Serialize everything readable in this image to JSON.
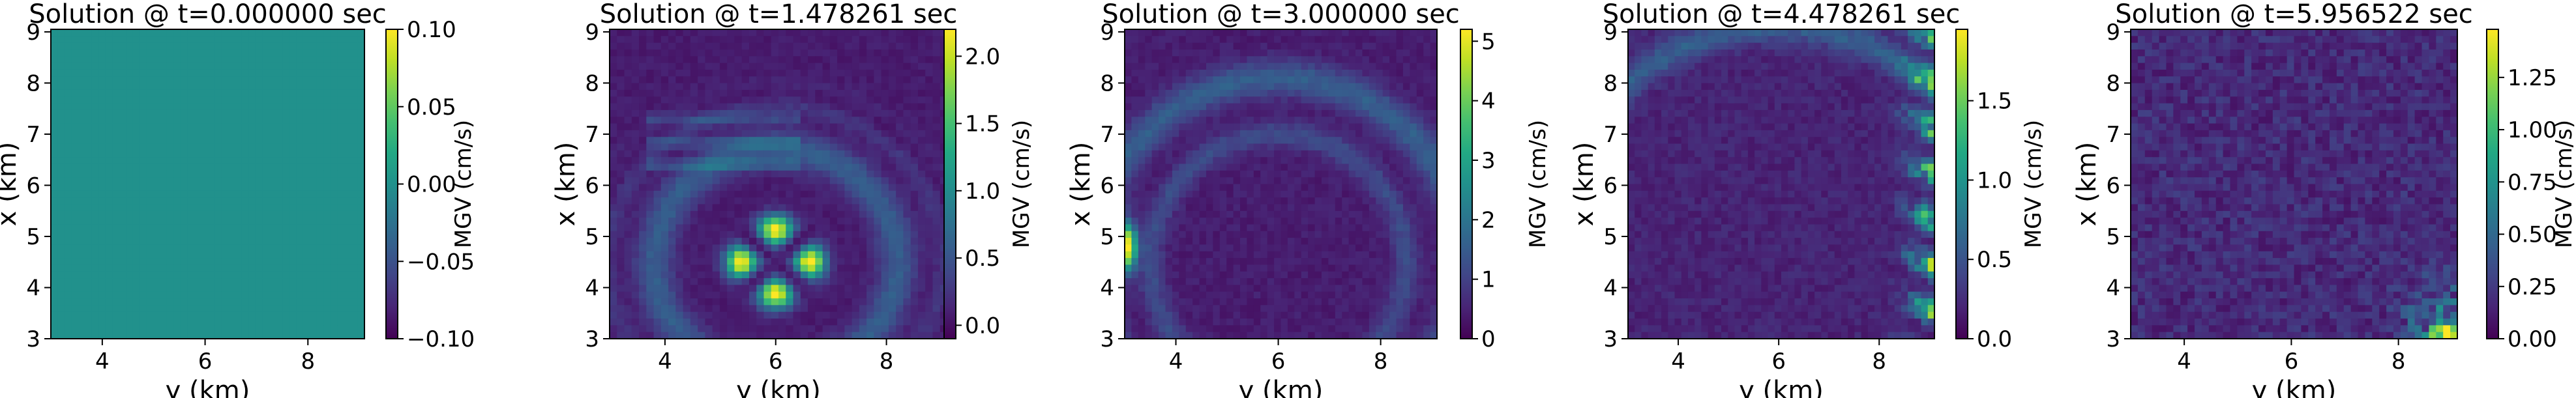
{
  "chart_data": [
    {
      "type": "heatmap",
      "title": "Solution @ t=0.000000 sec",
      "xlabel": "y (km)",
      "ylabel": "x (km)",
      "colorbar_label": "MGV (cm/s)",
      "xlim": [
        3,
        9.1
      ],
      "ylim": [
        3,
        9.05
      ],
      "xticks": [
        "4",
        "6",
        "8"
      ],
      "yticks": [
        "3",
        "4",
        "5",
        "6",
        "7",
        "8",
        "9"
      ],
      "colorbar_range": [
        -0.1,
        0.1
      ],
      "colorbar_ticks": [
        {
          "v": 0.1,
          "label": "0.10"
        },
        {
          "v": 0.05,
          "label": "0.05"
        },
        {
          "v": 0.0,
          "label": "0.00"
        },
        {
          "v": -0.05,
          "label": "−0.05"
        },
        {
          "v": -0.1,
          "label": "−0.10"
        }
      ],
      "colormap": "viridis",
      "field": "uniform zero field (all values 0)"
    },
    {
      "type": "heatmap",
      "title": "Solution @ t=1.478261 sec",
      "xlabel": "y (km)",
      "ylabel": "x (km)",
      "colorbar_label": "MGV (cm/s)",
      "xlim": [
        3,
        9.1
      ],
      "ylim": [
        3,
        9.05
      ],
      "xticks": [
        "4",
        "6",
        "8"
      ],
      "yticks": [
        "3",
        "4",
        "5",
        "6",
        "7",
        "8",
        "9"
      ],
      "colorbar_range": [
        -0.1,
        2.2
      ],
      "colorbar_ticks": [
        {
          "v": 2.0,
          "label": "2.0"
        },
        {
          "v": 1.5,
          "label": "1.5"
        },
        {
          "v": 1.0,
          "label": "1.0"
        },
        {
          "v": 0.5,
          "label": "0.5"
        },
        {
          "v": 0.0,
          "label": "0.0"
        }
      ],
      "colormap": "viridis",
      "field": "four-lobed bright pattern centred near y=6, x=4.5 (peak ~2.1) with concentric wave rings"
    },
    {
      "type": "heatmap",
      "title": "Solution @ t=3.000000 sec",
      "xlabel": "y (km)",
      "ylabel": "x (km)",
      "colorbar_label": "MGV (cm/s)",
      "xlim": [
        3,
        9.1
      ],
      "ylim": [
        3,
        9.05
      ],
      "xticks": [
        "4",
        "6",
        "8"
      ],
      "yticks": [
        "3",
        "4",
        "5",
        "6",
        "7",
        "8",
        "9"
      ],
      "colorbar_range": [
        0,
        5.2
      ],
      "colorbar_ticks": [
        {
          "v": 5,
          "label": "5"
        },
        {
          "v": 4,
          "label": "4"
        },
        {
          "v": 3,
          "label": "3"
        },
        {
          "v": 2,
          "label": "2"
        },
        {
          "v": 1,
          "label": "1"
        },
        {
          "v": 0,
          "label": "0"
        }
      ],
      "colormap": "viridis",
      "field": "expanding ring arcs, bright spot at left edge near x=4.8 (peak ~5)"
    },
    {
      "type": "heatmap",
      "title": "Solution @ t=4.478261 sec",
      "xlabel": "y (km)",
      "ylabel": "x (km)",
      "colorbar_label": "MGV (cm/s)",
      "xlim": [
        3,
        9.1
      ],
      "ylim": [
        3,
        9.05
      ],
      "xticks": [
        "4",
        "6",
        "8"
      ],
      "yticks": [
        "3",
        "4",
        "5",
        "6",
        "7",
        "8",
        "9"
      ],
      "colorbar_range": [
        0,
        1.95
      ],
      "colorbar_ticks": [
        {
          "v": 1.5,
          "label": "1.5"
        },
        {
          "v": 1.0,
          "label": "1.0"
        },
        {
          "v": 0.5,
          "label": "0.5"
        },
        {
          "v": 0.0,
          "label": "0.0"
        }
      ],
      "colormap": "viridis",
      "field": "low background with bright streaks along right edge near y=8.5-9 (peak ~1.9)"
    },
    {
      "type": "heatmap",
      "title": "Solution @ t=5.956522 sec",
      "xlabel": "y (km)",
      "ylabel": "x (km)",
      "colorbar_label": "MGV (cm/s)",
      "xlim": [
        3,
        9.1
      ],
      "ylim": [
        3,
        9.05
      ],
      "xticks": [
        "4",
        "6",
        "8"
      ],
      "yticks": [
        "3",
        "4",
        "5",
        "6",
        "7",
        "8",
        "9"
      ],
      "colorbar_range": [
        0,
        1.48
      ],
      "colorbar_ticks": [
        {
          "v": 1.25,
          "label": "1.25"
        },
        {
          "v": 1.0,
          "label": "1.00"
        },
        {
          "v": 0.75,
          "label": "0.75"
        },
        {
          "v": 0.5,
          "label": "0.50"
        },
        {
          "v": 0.25,
          "label": "0.25"
        },
        {
          "v": 0.0,
          "label": "0.00"
        }
      ],
      "colormap": "viridis",
      "field": "mostly dark noisy field with bright speckles in lower-right corner (peak ~1.45)"
    }
  ]
}
